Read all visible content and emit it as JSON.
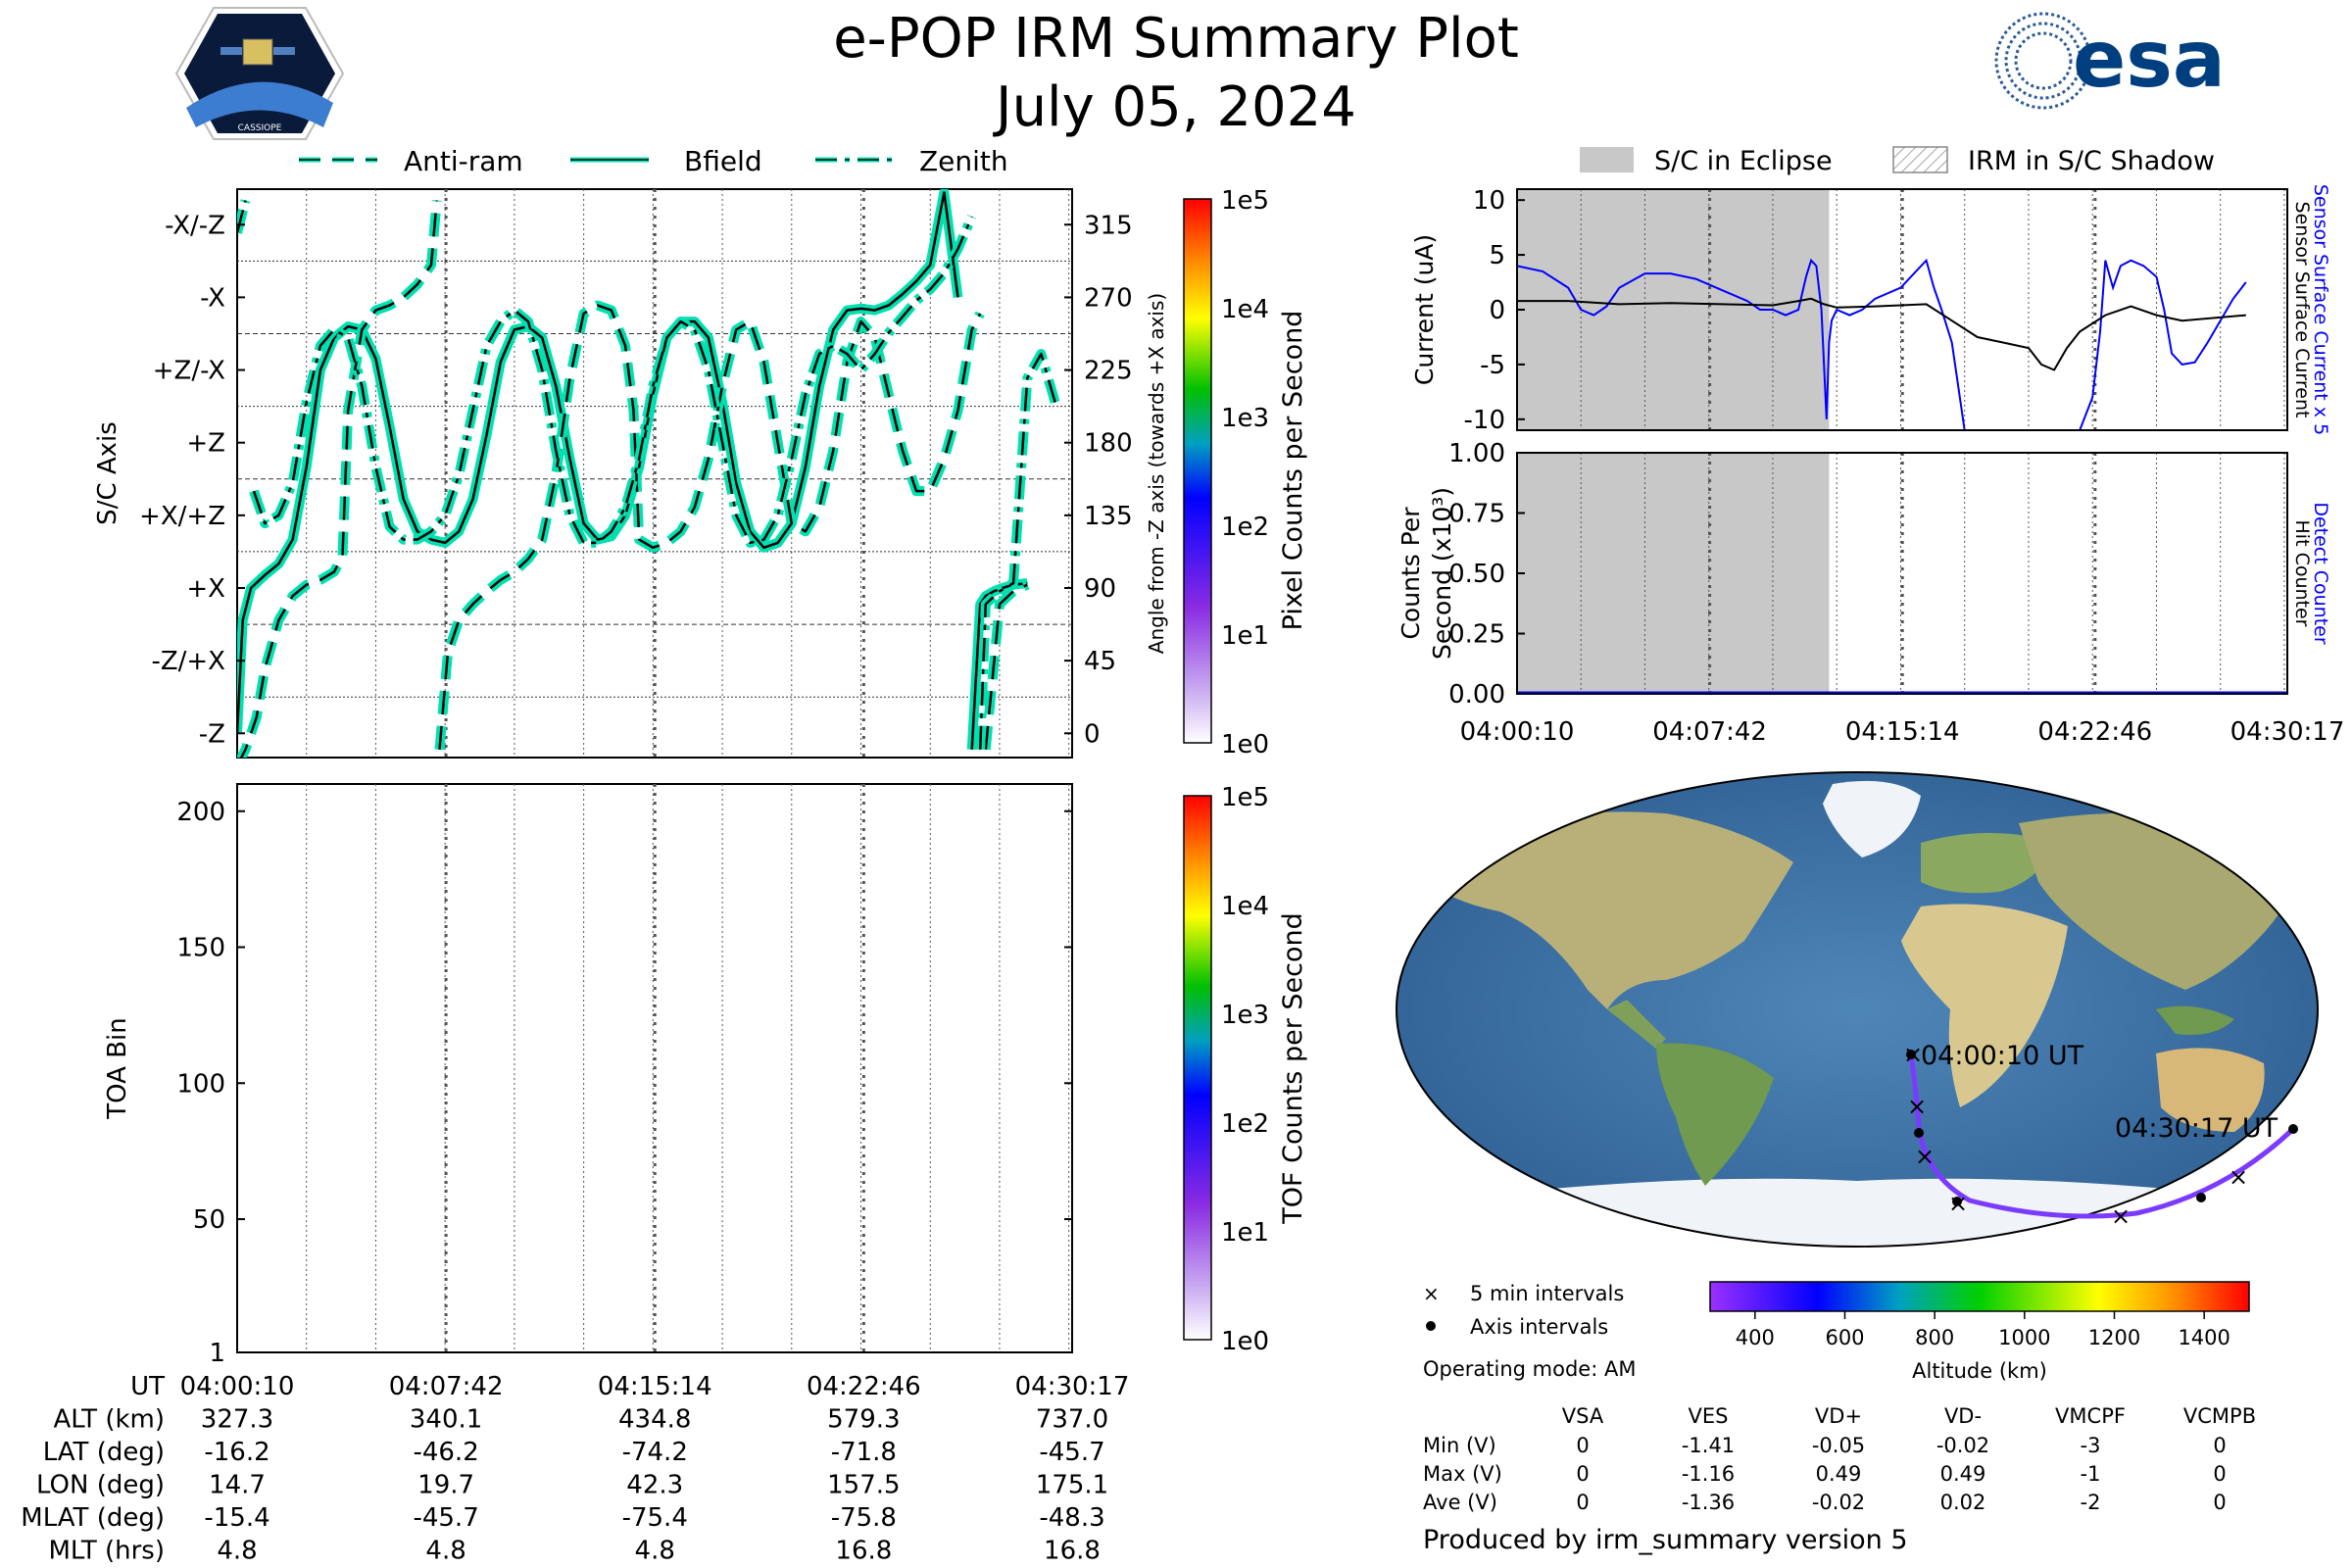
{
  "header": {
    "title": "e-POP IRM Summary Plot",
    "date": "July 05, 2024",
    "cassiope_logo_text": "CASSIOPE",
    "esa_logo_text": "esa"
  },
  "legend_top_left": [
    "Anti-ram",
    "Bfield",
    "Zenith"
  ],
  "legend_top_right": [
    "S/C in Eclipse",
    "IRM in S/C Shadow"
  ],
  "colors": {
    "trace": "#00e0b0",
    "trace_edge": "#000000",
    "eclipse": "#c8c8c8",
    "sensor_current_x5": "#0000ff",
    "sensor_current": "#000000"
  },
  "time_ticks": [
    "04:00:10",
    "04:07:42",
    "04:15:14",
    "04:22:46",
    "04:30:17"
  ],
  "chart_data": [
    {
      "type": "line",
      "ylabel": "S/C Axis",
      "y2label": "Angle from -Z axis (towards +X axis)",
      "ylim": [
        -15,
        337
      ],
      "axis_labels": [
        "-Z",
        "-Z/+X",
        "+X",
        "+X/+Z",
        "+Z",
        "+Z/-X",
        "-X",
        "-X/-Z"
      ],
      "angle_ticks": [
        0,
        45,
        90,
        135,
        180,
        225,
        270,
        315
      ],
      "x_unit": "minutes after 04:00:10",
      "series": [
        {
          "name": "Bfield",
          "x": [
            0,
            0.2,
            0.5,
            1,
            1.5,
            2,
            2.5,
            3,
            3.5,
            4,
            4.5,
            5,
            5.5,
            6,
            6.5,
            7,
            7.5,
            8,
            8.5,
            9,
            9.5,
            10,
            10.5,
            11,
            11.5,
            12,
            12.5,
            13,
            13.5,
            14,
            14.5,
            15,
            15.5,
            16,
            16.5,
            17,
            17.5,
            18,
            18.5,
            19,
            19.5,
            20,
            20.5,
            21,
            21.5,
            22,
            22.5,
            23,
            23.5,
            24,
            24.5,
            25,
            25.5,
            26,
            26.5,
            26.8,
            27,
            27.3,
            27.6,
            28,
            28.5
          ],
          "y": [
            0,
            70,
            90,
            98,
            105,
            120,
            165,
            225,
            245,
            252,
            250,
            232,
            190,
            145,
            125,
            120,
            118,
            125,
            145,
            185,
            230,
            250,
            252,
            245,
            215,
            170,
            130,
            120,
            122,
            135,
            165,
            210,
            245,
            255,
            255,
            245,
            205,
            155,
            125,
            115,
            118,
            130,
            165,
            215,
            250,
            262,
            263,
            262,
            265,
            272,
            280,
            290,
            335,
            270,
            -10,
            80,
            85,
            88,
            90,
            92,
            93
          ]
        },
        {
          "name": "Anti-ram",
          "x": [
            0,
            0.3,
            0.7,
            1,
            1.5,
            2,
            2.5,
            3,
            3.5,
            3.8,
            4,
            4.5,
            5,
            5.5,
            6,
            6.5,
            7,
            7.2,
            7.3,
            7.6,
            8,
            8.5,
            9,
            9.5,
            10,
            10.5,
            11,
            11.5,
            12,
            12.5,
            13,
            13.5,
            14,
            14.3,
            14.5,
            15,
            15.5,
            16,
            16.5,
            17,
            17.5,
            18,
            18.5,
            19,
            19.5,
            20,
            20.5,
            21,
            21.5,
            22,
            22.5,
            23,
            23.5,
            24,
            24.5,
            25,
            25.5,
            26,
            26.5,
            26.8,
            27,
            27.5,
            28,
            28.5
          ],
          "y": [
            -20,
            -10,
            10,
            40,
            70,
            85,
            92,
            95,
            100,
            110,
            200,
            250,
            262,
            265,
            270,
            278,
            290,
            330,
            -10,
            50,
            70,
            80,
            88,
            95,
            100,
            108,
            120,
            160,
            220,
            260,
            265,
            262,
            240,
            200,
            120,
            115,
            118,
            125,
            140,
            170,
            215,
            250,
            255,
            230,
            180,
            130,
            125,
            140,
            175,
            230,
            255,
            245,
            210,
            175,
            150,
            150,
            170,
            200,
            250,
            260,
            -10,
            80,
            88,
            92
          ]
        },
        {
          "name": "Zenith",
          "x": [
            0,
            0.3,
            0.6,
            1,
            1.5,
            2,
            2.5,
            3,
            3.5,
            4,
            4.5,
            5,
            5.5,
            6,
            6.5,
            7,
            7.5,
            8,
            8.5,
            9,
            9.5,
            10,
            10.5,
            11,
            11.5,
            12,
            12.5,
            13,
            13.5,
            14,
            14.5,
            15,
            15.5,
            16,
            16.5,
            17,
            17.5,
            18,
            18.5,
            19,
            19.5,
            20,
            20.5,
            21,
            21.5,
            22,
            22.5,
            23,
            23.5,
            24,
            24.5,
            25,
            25.5,
            26,
            26.5,
            26.8,
            27,
            27.5,
            28,
            28.5,
            29,
            29.5
          ],
          "y": [
            310,
            330,
            150,
            130,
            135,
            155,
            205,
            240,
            250,
            245,
            215,
            165,
            128,
            120,
            120,
            125,
            135,
            160,
            200,
            240,
            255,
            262,
            255,
            225,
            175,
            135,
            118,
            118,
            125,
            140,
            170,
            215,
            245,
            255,
            250,
            225,
            180,
            135,
            118,
            120,
            135,
            170,
            210,
            235,
            240,
            235,
            225,
            235,
            248,
            258,
            268,
            275,
            285,
            300,
            320,
            -10,
            80,
            88,
            93,
            220,
            235,
            205
          ]
        }
      ]
    },
    {
      "type": "heatmap",
      "ylabel": "TOA Bin",
      "ylim": [
        1,
        210
      ],
      "yticks": [
        1,
        50,
        100,
        150,
        200
      ],
      "colorbar_label": "TOF Counts per Second",
      "pixel_colorbar_label": "Pixel Counts per Second",
      "colorbar_ticks": [
        "1e0",
        "1e1",
        "1e2",
        "1e3",
        "1e4",
        "1e5"
      ]
    },
    {
      "type": "line",
      "ylabel": "Current (uA)",
      "ylim": [
        -11,
        11
      ],
      "yticks": [
        10,
        5,
        0,
        -5,
        -10
      ],
      "right_labels": [
        "Sensor Surface Current x 5",
        "Sensor Surface Current"
      ],
      "x_unit": "minutes after 04:00:10",
      "eclipse_range": [
        0,
        12.2
      ],
      "series": [
        {
          "name": "Sensor Surface Current x 5",
          "x": [
            0,
            1,
            2,
            2.5,
            3,
            3.5,
            4,
            5,
            6,
            7,
            8,
            9,
            9.5,
            10,
            10.5,
            11,
            11.3,
            11.5,
            11.7,
            11.9,
            12.0,
            12.1,
            12.2,
            12.3,
            12.5,
            13,
            13.5,
            14,
            15,
            16,
            16.3,
            16.6,
            17,
            17.5,
            18,
            18.5,
            19,
            20,
            21,
            22,
            22.5,
            22.8,
            23,
            23.3,
            23.6,
            24,
            24.5,
            25,
            25.3,
            25.6,
            26,
            26.5,
            27,
            28,
            28.5
          ],
          "y": [
            4,
            3.5,
            2,
            0,
            -0.5,
            0.3,
            2,
            3.3,
            3.3,
            2.8,
            1.8,
            0.8,
            0,
            0,
            -0.5,
            0,
            3,
            4.5,
            4,
            0,
            -5,
            -10,
            -3,
            -1,
            0,
            -0.5,
            0,
            1,
            2,
            4.5,
            2,
            0,
            -3,
            -11,
            -11,
            -11,
            -11,
            -11,
            -11,
            -11,
            -8,
            -2,
            4.5,
            2,
            4,
            4.5,
            4,
            3,
            0,
            -4,
            -5,
            -4.8,
            -3,
            1,
            2.5
          ]
        },
        {
          "name": "Sensor Surface Current",
          "x": [
            0,
            2,
            4,
            6,
            8,
            10,
            11,
            11.5,
            12,
            12.5,
            14,
            16,
            17,
            18,
            19,
            20,
            20.5,
            21,
            21.5,
            22,
            23,
            24,
            25,
            26,
            28.5
          ],
          "y": [
            0.8,
            0.8,
            0.5,
            0.6,
            0.5,
            0.4,
            0.8,
            1.0,
            0.5,
            0.2,
            0.3,
            0.5,
            -1,
            -2.5,
            -3,
            -3.5,
            -5,
            -5.5,
            -3.5,
            -2,
            -0.5,
            0.3,
            -0.5,
            -1,
            -0.5
          ]
        }
      ]
    },
    {
      "type": "line",
      "ylabel": "Counts Per Second (x10³)",
      "ylim": [
        0,
        1
      ],
      "yticks": [
        "0.00",
        "0.25",
        "0.50",
        "0.75",
        "1.00"
      ],
      "right_labels": [
        "Detect Counter",
        "Hit Counter"
      ],
      "x_unit": "minutes after 04:00:10",
      "eclipse_range": [
        0,
        12.2
      ],
      "series": [
        {
          "name": "Detect Counter",
          "x": [
            0,
            30.1
          ],
          "y": [
            0,
            0
          ]
        }
      ]
    }
  ],
  "map": {
    "start_label": "04:00:10 UT",
    "end_label": "04:30:17 UT",
    "legend": [
      "5 min intervals",
      "Axis intervals"
    ],
    "colorbar_label": "Altitude (km)",
    "colorbar_ticks": [
      "400",
      "600",
      "800",
      "1000",
      "1200",
      "1400"
    ],
    "operating_mode": "Operating mode: AM"
  },
  "stats": {
    "headers": [
      "VSA",
      "VES",
      "VD+",
      "VD-",
      "VMCPF",
      "VCMPB"
    ],
    "rows": [
      {
        "label": "Min (V)",
        "values": [
          "0",
          "-1.41",
          "-0.05",
          "-0.02",
          "-3",
          "0"
        ]
      },
      {
        "label": "Max (V)",
        "values": [
          "0",
          "-1.16",
          "0.49",
          "0.49",
          "-1",
          "0"
        ]
      },
      {
        "label": "Ave (V)",
        "values": [
          "0",
          "-1.36",
          "-0.02",
          "0.02",
          "-2",
          "0"
        ]
      }
    ]
  },
  "footer": "Produced by irm_summary version 5",
  "ephemeris": {
    "row_labels": [
      "UT",
      "ALT (km)",
      "LAT (deg)",
      "LON (deg)",
      "MLAT (deg)",
      "MLT (hrs)"
    ],
    "columns": [
      [
        "04:00:10",
        "327.3",
        "-16.2",
        "14.7",
        "-15.4",
        "4.8"
      ],
      [
        "04:07:42",
        "340.1",
        "-46.2",
        "19.7",
        "-45.7",
        "4.8"
      ],
      [
        "04:15:14",
        "434.8",
        "-74.2",
        "42.3",
        "-75.4",
        "4.8"
      ],
      [
        "04:22:46",
        "579.3",
        "-71.8",
        "157.5",
        "-75.8",
        "16.8"
      ],
      [
        "04:30:17",
        "737.0",
        "-45.7",
        "175.1",
        "-48.3",
        "16.8"
      ]
    ]
  }
}
